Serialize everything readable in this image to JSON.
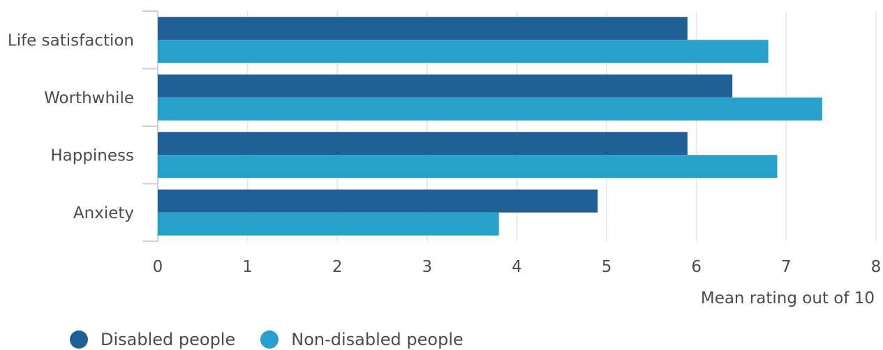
{
  "chart_data": {
    "type": "bar",
    "orientation": "horizontal",
    "categories": [
      "Life satisfaction",
      "Worthwhile",
      "Happiness",
      "Anxiety"
    ],
    "series": [
      {
        "name": "Disabled people",
        "color": "#206095",
        "values": [
          5.9,
          6.4,
          5.9,
          4.9
        ]
      },
      {
        "name": "Non-disabled people",
        "color": "#27a0cc",
        "values": [
          6.8,
          7.4,
          6.9,
          3.8
        ]
      }
    ],
    "x_ticks": [
      "0",
      "1",
      "2",
      "3",
      "4",
      "5",
      "6",
      "7",
      "8"
    ],
    "xlim": [
      0,
      8
    ],
    "xlabel": "Mean rating out of 10",
    "ylabel": "",
    "title": "",
    "grid": true,
    "legend_position": "bottom-left"
  }
}
